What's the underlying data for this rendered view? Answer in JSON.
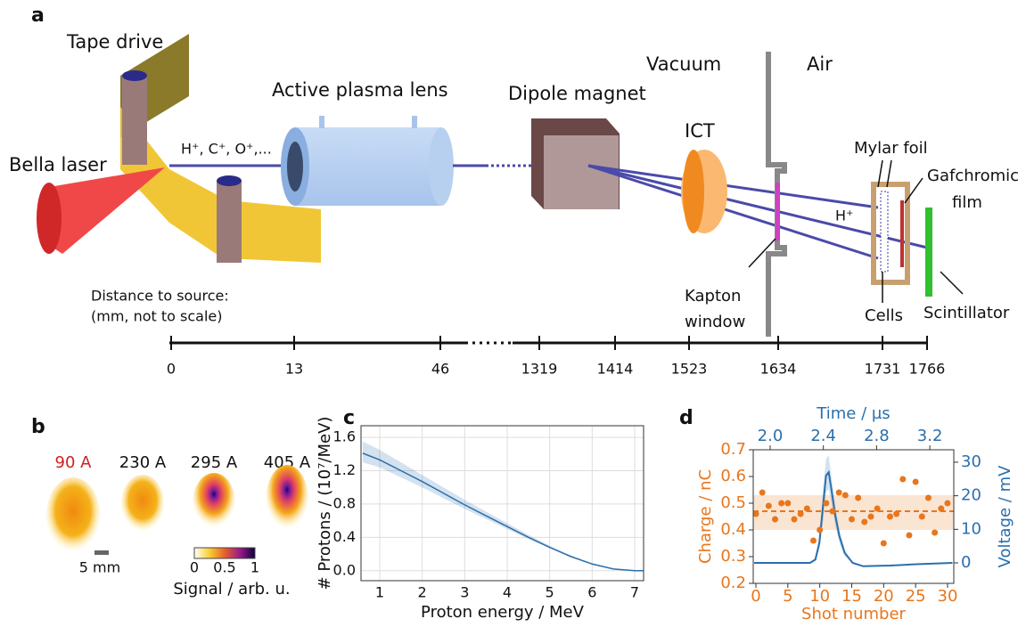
{
  "panel_a": {
    "label": "a",
    "tape_drive": "Tape drive",
    "plasma_lens": "Active plasma lens",
    "dipole": "Dipole magnet",
    "vacuum": "Vacuum",
    "air": "Air",
    "ict": "ICT",
    "mylar": "Mylar foil",
    "gafchromic": [
      "Gafchromic",
      "film"
    ],
    "laser": "Bella laser",
    "ions": "H⁺, C⁺, O⁺,...",
    "proton": "H⁺",
    "distance": [
      "Distance to source:",
      "(mm, not to scale)"
    ],
    "kapton": [
      "Kapton",
      "window"
    ],
    "cells": "Cells",
    "scintillator": "Scintillator",
    "distance_ticks": [
      "0",
      "13",
      "46",
      "1319",
      "1414",
      "1523",
      "1634",
      "1731",
      "1766"
    ]
  },
  "panel_b": {
    "label": "b",
    "currents": [
      "90 A",
      "230 A",
      "295 A",
      "405 A"
    ],
    "scale": "5 mm",
    "colorbar_ticks": [
      "0",
      "0.5",
      "1"
    ],
    "colorbar_label": "Signal / arb. u."
  },
  "chart_data": [
    {
      "label": "c",
      "type": "line",
      "xlabel": "Proton energy / MeV",
      "ylabel": "# Protons / (10⁷/MeV)",
      "x": [
        0.6,
        1,
        1.5,
        2,
        2.5,
        3,
        3.5,
        4,
        4.5,
        5,
        5.5,
        6,
        6.5,
        7,
        7.2
      ],
      "series": [
        {
          "color": "#2a6fad",
          "values": [
            1.41,
            1.33,
            1.2,
            1.07,
            0.93,
            0.79,
            0.66,
            0.53,
            0.4,
            0.28,
            0.17,
            0.08,
            0.02,
            0,
            0
          ],
          "lower": [
            1.3,
            1.24,
            1.12,
            1.0,
            0.87,
            0.74,
            0.62,
            0.5,
            0.38,
            0.27,
            0.16,
            0.07,
            0.02,
            0,
            0
          ],
          "upper": [
            1.55,
            1.45,
            1.3,
            1.15,
            1.0,
            0.85,
            0.71,
            0.57,
            0.43,
            0.3,
            0.18,
            0.09,
            0.03,
            0,
            0
          ]
        }
      ],
      "xlim": [
        0.56,
        7.21
      ],
      "ylim": [
        -0.12,
        1.74
      ],
      "xticks": [
        1,
        2,
        3,
        4,
        5,
        6,
        7
      ],
      "yticks": [
        {
          "value": 0,
          "label": "0.0"
        },
        0.4,
        0.8,
        1.2,
        1.6
      ],
      "grid": true
    },
    {
      "label": "d",
      "type": "scatter",
      "xlabel": "Shot number",
      "x2label": "Time / µs",
      "ylabel": "Charge / nC",
      "y2label": "Voltage / mV",
      "x": [
        0,
        1,
        2,
        3,
        4,
        5,
        6,
        7,
        8,
        9,
        10,
        11,
        12,
        13,
        14,
        15,
        16,
        17,
        18,
        19,
        20,
        21,
        22,
        23,
        24,
        25,
        26,
        27,
        28,
        29,
        30
      ],
      "series": [
        {
          "color": "#e8761c",
          "values": [
            0.46,
            0.54,
            0.49,
            0.44,
            0.5,
            0.5,
            0.44,
            0.46,
            0.48,
            0.36,
            0.4,
            0.5,
            0.47,
            0.54,
            0.53,
            0.44,
            0.52,
            0.43,
            0.45,
            0.48,
            0.35,
            0.45,
            0.46,
            0.59,
            0.38,
            0.58,
            0.45,
            0.52,
            0.39,
            0.48,
            0.5
          ]
        },
        {
          "type": "line",
          "axis": "y2",
          "color": "#2a6fad",
          "x": [
            1.88,
            2.3,
            2.34,
            2.37,
            2.4,
            2.42,
            2.44,
            2.46,
            2.49,
            2.52,
            2.56,
            2.62,
            2.7,
            2.9,
            3.1,
            3.37
          ],
          "values": [
            0,
            0,
            1,
            6,
            18,
            26,
            27,
            22,
            14,
            8,
            3,
            0,
            -1,
            -0.8,
            -0.4,
            0
          ],
          "lower": [
            0,
            0,
            0.5,
            4,
            13,
            21,
            22,
            18,
            11,
            6,
            2,
            0,
            -1,
            -0.8,
            -0.4,
            0
          ],
          "upper": [
            0,
            0,
            1.5,
            8,
            23,
            31,
            32,
            26,
            17,
            10,
            4,
            0,
            -1,
            -0.8,
            -0.4,
            0
          ]
        }
      ],
      "mean": 0.47,
      "mean_band": [
        0.4,
        0.53
      ],
      "xlim": [
        -0.42,
        30.98
      ],
      "x2lim": [
        1.873,
        3.38
      ],
      "ylim": [
        0.2,
        0.7
      ],
      "y2lim": [
        -6.1,
        33.7
      ],
      "xticks": [
        0,
        5,
        10,
        15,
        20,
        25,
        30
      ],
      "x2ticks": [
        {
          "value": 2,
          "label": "2.0"
        },
        2.4,
        2.8,
        3.2
      ],
      "yticks": [
        0.2,
        0.3,
        0.4,
        0.5,
        0.6,
        0.7
      ],
      "y2ticks": [
        0,
        10,
        20,
        30
      ]
    }
  ]
}
